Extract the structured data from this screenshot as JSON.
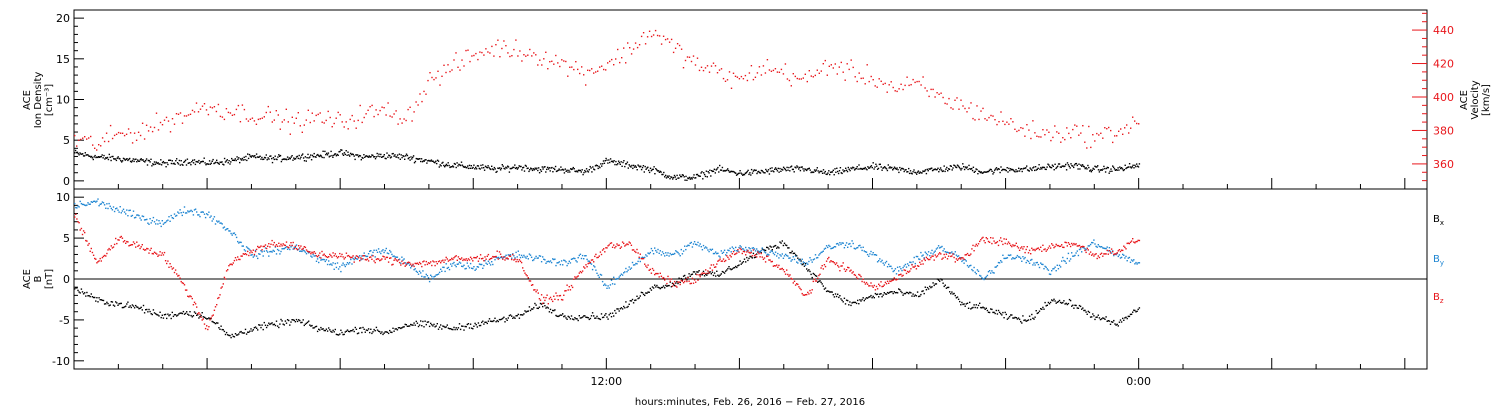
{
  "xlabel": "hours:minutes, Feb. 26, 2016 − Feb. 27, 2016",
  "colors": {
    "black": "#000000",
    "red": "#e8161b",
    "blue": "#1f86d2"
  },
  "chart_data": [
    {
      "type": "scatter",
      "panel": "plasma",
      "ylabel_left": [
        "ACE",
        "Ion Density",
        "[cm⁻³]"
      ],
      "ylabel_right": [
        "ACE",
        "Velocity",
        "[km/s]"
      ],
      "x_ticks": {
        "labels": [
          "12:00",
          "0:00"
        ],
        "label_hours": [
          12,
          24
        ]
      },
      "xlim_hours": [
        0,
        30.5
      ],
      "ylim_left": [
        -1,
        21
      ],
      "ylim_right": [
        345,
        452
      ],
      "left_ticks": [
        0,
        5,
        10,
        15,
        20
      ],
      "right_ticks": [
        360,
        380,
        400,
        420,
        440
      ],
      "series": [
        {
          "axis": "left",
          "color": "black",
          "x": [
            0.0,
            0.5,
            1.0,
            1.5,
            2.0,
            2.5,
            3.0,
            3.5,
            4.0,
            4.5,
            5.0,
            5.5,
            6.0,
            6.5,
            7.0,
            7.5,
            8.0,
            8.5,
            9.0,
            9.5,
            10.0,
            10.5,
            11.0,
            11.5,
            12.0,
            12.5,
            13.0,
            13.5,
            14.0,
            14.5,
            15.0,
            15.5,
            16.0,
            16.5,
            17.0,
            17.5,
            18.0,
            18.5,
            19.0,
            19.5,
            20.0,
            20.5,
            21.0,
            21.5,
            22.0,
            22.5,
            23.0,
            23.5,
            24.0
          ],
          "y": [
            3.5,
            3.0,
            2.8,
            2.5,
            2.2,
            2.5,
            2.3,
            2.5,
            3.0,
            2.8,
            3.0,
            3.2,
            3.5,
            3.0,
            3.2,
            3.0,
            2.5,
            2.0,
            1.8,
            1.5,
            1.8,
            1.5,
            1.5,
            1.2,
            2.5,
            2.0,
            1.5,
            0.5,
            0.5,
            1.5,
            1.0,
            1.2,
            1.5,
            1.5,
            1.0,
            1.5,
            1.8,
            1.5,
            1.2,
            1.5,
            1.8,
            1.2,
            1.5,
            1.5,
            1.8,
            2.0,
            1.5,
            1.5,
            2.0
          ]
        },
        {
          "axis": "right",
          "color": "red",
          "x": [
            0.0,
            0.5,
            1.0,
            1.5,
            2.0,
            2.5,
            3.0,
            3.5,
            4.0,
            4.5,
            5.0,
            5.5,
            6.0,
            6.5,
            7.0,
            7.5,
            8.0,
            8.5,
            9.0,
            9.5,
            10.0,
            10.5,
            11.0,
            11.5,
            12.0,
            12.5,
            13.0,
            13.5,
            14.0,
            14.5,
            15.0,
            15.5,
            16.0,
            16.5,
            17.0,
            17.5,
            18.0,
            18.5,
            19.0,
            19.5,
            20.0,
            20.5,
            21.0,
            21.5,
            22.0,
            22.5,
            23.0,
            23.5,
            24.0
          ],
          "y": [
            375,
            372,
            378,
            380,
            385,
            390,
            395,
            392,
            390,
            388,
            385,
            388,
            385,
            390,
            392,
            388,
            410,
            418,
            425,
            430,
            428,
            425,
            420,
            415,
            420,
            428,
            440,
            430,
            420,
            415,
            410,
            418,
            415,
            410,
            420,
            415,
            412,
            405,
            408,
            400,
            395,
            390,
            385,
            380,
            378,
            380,
            376,
            380,
            385
          ]
        }
      ]
    },
    {
      "type": "scatter",
      "panel": "magnetic",
      "ylabel_left": [
        "ACE",
        "B",
        "[nT]"
      ],
      "x_ticks": {
        "labels": [
          "12:00",
          "0:00"
        ],
        "label_hours": [
          12,
          24
        ]
      },
      "xlim_hours": [
        0,
        30.5
      ],
      "ylim": [
        -11,
        11
      ],
      "y_ticks": [
        -10,
        -5,
        0,
        5,
        10
      ],
      "legend": [
        "B",
        "B",
        "B"
      ],
      "legend_subscripts": [
        "x",
        "y",
        "z"
      ],
      "series": [
        {
          "subscript": "x",
          "color": "black",
          "x": [
            0.0,
            0.5,
            1.0,
            1.5,
            2.0,
            2.5,
            3.0,
            3.5,
            4.0,
            4.5,
            5.0,
            5.5,
            6.0,
            6.5,
            7.0,
            7.5,
            8.0,
            8.5,
            9.0,
            9.5,
            10.0,
            10.5,
            11.0,
            11.5,
            12.0,
            12.5,
            13.0,
            13.5,
            14.0,
            14.5,
            15.0,
            15.5,
            16.0,
            16.5,
            17.0,
            17.5,
            18.0,
            18.5,
            19.0,
            19.5,
            20.0,
            20.5,
            21.0,
            21.5,
            22.0,
            22.5,
            23.0,
            23.5,
            24.0
          ],
          "y": [
            -1,
            -2.5,
            -3,
            -3.5,
            -4.5,
            -4.0,
            -4.5,
            -7,
            -6,
            -5.5,
            -5,
            -6,
            -6.5,
            -6,
            -6.5,
            -5.5,
            -5.5,
            -6,
            -5.5,
            -5,
            -4.5,
            -3,
            -4.5,
            -4.5,
            -4.5,
            -3,
            -1,
            -0.5,
            1,
            0.5,
            2,
            3.5,
            4.5,
            1.5,
            -1.5,
            -3,
            -2,
            -1.5,
            -2,
            0,
            -3,
            -3.5,
            -4.5,
            -5,
            -2.5,
            -3,
            -4.5,
            -5.5,
            -3.5
          ]
        },
        {
          "subscript": "y",
          "color": "blue",
          "x": [
            0.0,
            0.5,
            1.0,
            1.5,
            2.0,
            2.5,
            3.0,
            3.5,
            4.0,
            4.5,
            5.0,
            5.5,
            6.0,
            6.5,
            7.0,
            7.5,
            8.0,
            8.5,
            9.0,
            9.5,
            10.0,
            10.5,
            11.0,
            11.5,
            12.0,
            12.5,
            13.0,
            13.5,
            14.0,
            14.5,
            15.0,
            15.5,
            16.0,
            16.5,
            17.0,
            17.5,
            18.0,
            18.5,
            19.0,
            19.5,
            20.0,
            20.5,
            21.0,
            21.5,
            22.0,
            22.5,
            23.0,
            23.5,
            24.0
          ],
          "y": [
            9,
            9.5,
            8.5,
            7.5,
            7,
            8.5,
            8,
            6,
            3,
            3.5,
            4,
            2.5,
            1.5,
            3,
            3.5,
            2,
            0,
            2,
            1.5,
            2.5,
            3,
            2.5,
            2,
            3,
            -1,
            1.5,
            3.5,
            3,
            4.5,
            3,
            4,
            3.5,
            3,
            2,
            4,
            4.5,
            3,
            1,
            2.5,
            4,
            2.5,
            0,
            3,
            2.5,
            1,
            3,
            4.5,
            3,
            2
          ]
        },
        {
          "subscript": "z",
          "color": "red",
          "x": [
            0.0,
            0.5,
            1.0,
            1.5,
            2.0,
            2.5,
            3.0,
            3.5,
            4.0,
            4.5,
            5.0,
            5.5,
            6.0,
            6.5,
            7.0,
            7.5,
            8.0,
            8.5,
            9.0,
            9.5,
            10.0,
            10.5,
            11.0,
            11.5,
            12.0,
            12.5,
            13.0,
            13.5,
            14.0,
            14.5,
            15.0,
            15.5,
            16.0,
            16.5,
            17.0,
            17.5,
            18.0,
            18.5,
            19.0,
            19.5,
            20.0,
            20.5,
            21.0,
            21.5,
            22.0,
            22.5,
            23.0,
            23.5,
            24.0
          ],
          "y": [
            8,
            2,
            5,
            4,
            3,
            -1,
            -6,
            2,
            3.5,
            4.5,
            4,
            3,
            3,
            2.5,
            2.5,
            2,
            2,
            2.5,
            2.5,
            3,
            2.5,
            -2.5,
            -2,
            1.5,
            4,
            4.5,
            1,
            -0.5,
            0,
            2,
            3.5,
            3,
            1,
            -2,
            2.5,
            1,
            -1,
            0,
            2,
            3,
            2.5,
            5,
            4.5,
            3.5,
            4,
            4.5,
            3,
            3.5,
            5
          ]
        }
      ]
    }
  ]
}
